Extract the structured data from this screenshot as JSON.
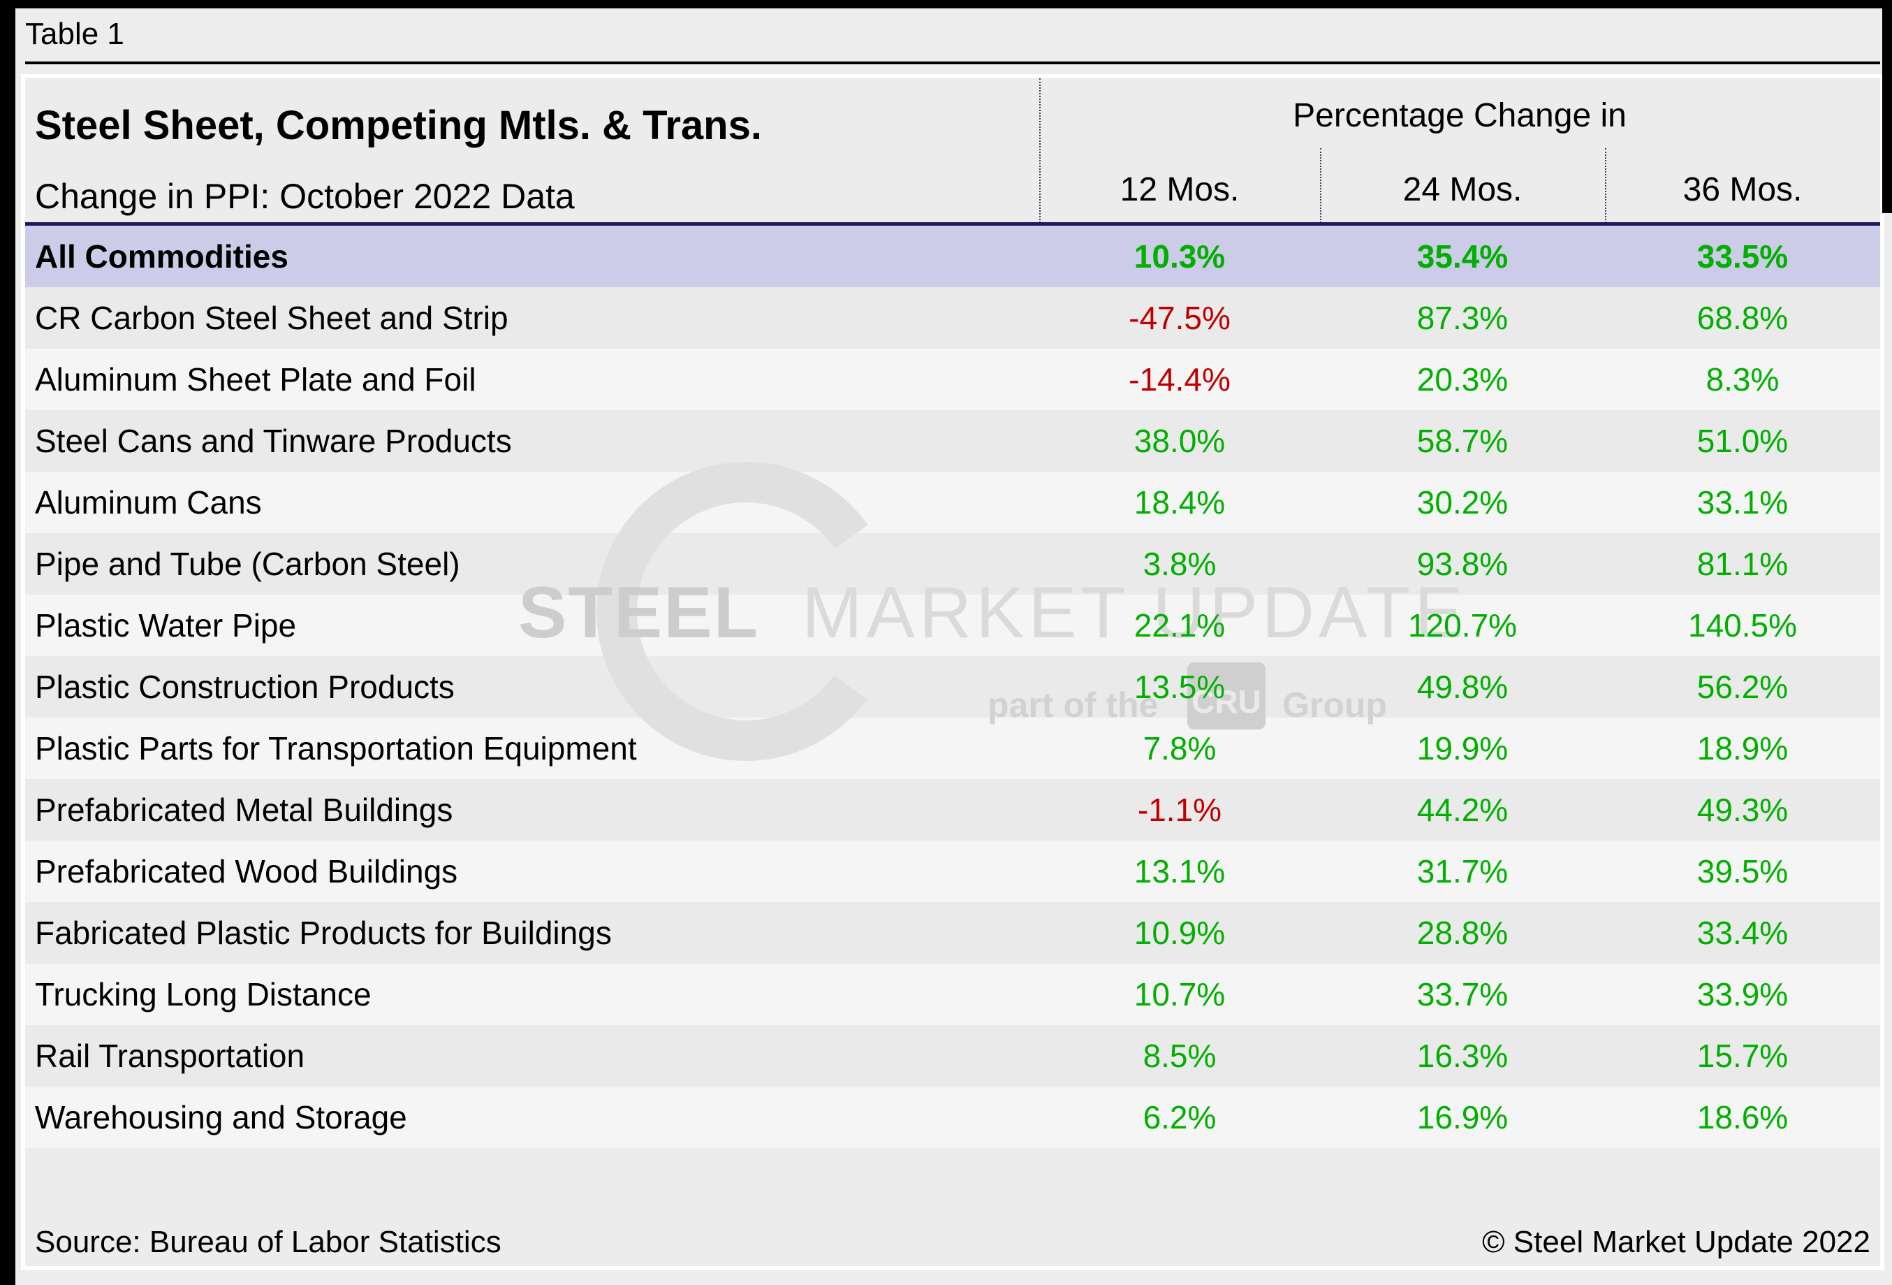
{
  "page": {
    "label": "Table 1"
  },
  "table": {
    "title": "Steel Sheet, Competing Mtls. & Trans.",
    "subtitle": "Change in PPI: October 2022 Data",
    "col_group_header": "Percentage Change in",
    "columns": [
      "12 Mos.",
      "24 Mos.",
      "36 Mos."
    ],
    "rows": [
      {
        "label": "All Commodities",
        "values": [
          "10.3%",
          "35.4%",
          "33.5%"
        ],
        "highlight": true
      },
      {
        "label": "CR Carbon Steel Sheet and Strip",
        "values": [
          "-47.5%",
          "87.3%",
          "68.8%"
        ],
        "highlight": false
      },
      {
        "label": "Aluminum Sheet Plate and Foil",
        "values": [
          "-14.4%",
          "20.3%",
          "8.3%"
        ],
        "highlight": false
      },
      {
        "label": "Steel Cans and Tinware Products",
        "values": [
          "38.0%",
          "58.7%",
          "51.0%"
        ],
        "highlight": false
      },
      {
        "label": "Aluminum Cans",
        "values": [
          "18.4%",
          "30.2%",
          "33.1%"
        ],
        "highlight": false
      },
      {
        "label": "Pipe and Tube (Carbon Steel)",
        "values": [
          "3.8%",
          "93.8%",
          "81.1%"
        ],
        "highlight": false
      },
      {
        "label": "Plastic Water Pipe",
        "values": [
          "22.1%",
          "120.7%",
          "140.5%"
        ],
        "highlight": false
      },
      {
        "label": "Plastic Construction Products",
        "values": [
          "13.5%",
          "49.8%",
          "56.2%"
        ],
        "highlight": false
      },
      {
        "label": "Plastic Parts for Transportation Equipment",
        "values": [
          "7.8%",
          "19.9%",
          "18.9%"
        ],
        "highlight": false
      },
      {
        "label": "Prefabricated Metal Buildings",
        "values": [
          "-1.1%",
          "44.2%",
          "49.3%"
        ],
        "highlight": false
      },
      {
        "label": "Prefabricated Wood Buildings",
        "values": [
          "13.1%",
          "31.7%",
          "39.5%"
        ],
        "highlight": false
      },
      {
        "label": "Fabricated Plastic Products for Buildings",
        "values": [
          "10.9%",
          "28.8%",
          "33.4%"
        ],
        "highlight": false
      },
      {
        "label": "Trucking Long Distance",
        "values": [
          "10.7%",
          "33.7%",
          "33.9%"
        ],
        "highlight": false
      },
      {
        "label": "Rail Transportation",
        "values": [
          "8.5%",
          "16.3%",
          "15.7%"
        ],
        "highlight": false
      },
      {
        "label": "Warehousing and Storage",
        "values": [
          "6.2%",
          "16.9%",
          "18.6%"
        ],
        "highlight": false
      }
    ]
  },
  "footer": {
    "source": "Source: Bureau of Labor Statistics",
    "copyright": "© Steel Market Update 2022"
  },
  "watermark": {
    "logo": "smu-circle-logo",
    "brand_bold": "STEEL",
    "brand_light": "MARKET UPDATE",
    "tagline_prefix": "part of the",
    "tagline_box": "CRU",
    "tagline_suffix": "Group"
  },
  "colors": {
    "positive": "#00AF00",
    "negative": "#C00000",
    "highlight_row": "#CCCCE9",
    "header_divider": "#1B1B5E",
    "stripe_dark": "#EAEAEA",
    "stripe_light": "#F5F5F5"
  },
  "chart_data": {
    "type": "table",
    "title": "Steel Sheet, Competing Mtls. & Trans.",
    "subtitle": "Change in PPI: October 2022 Data",
    "value_group": "Percentage Change in",
    "columns": [
      "12 Mos.",
      "24 Mos.",
      "36 Mos."
    ],
    "rows": [
      {
        "label": "All Commodities",
        "values": [
          10.3,
          35.4,
          33.5
        ]
      },
      {
        "label": "CR Carbon Steel Sheet and Strip",
        "values": [
          -47.5,
          87.3,
          68.8
        ]
      },
      {
        "label": "Aluminum Sheet Plate and Foil",
        "values": [
          -14.4,
          20.3,
          8.3
        ]
      },
      {
        "label": "Steel Cans and Tinware Products",
        "values": [
          38.0,
          58.7,
          51.0
        ]
      },
      {
        "label": "Aluminum Cans",
        "values": [
          18.4,
          30.2,
          33.1
        ]
      },
      {
        "label": "Pipe and Tube (Carbon Steel)",
        "values": [
          3.8,
          93.8,
          81.1
        ]
      },
      {
        "label": "Plastic Water Pipe",
        "values": [
          22.1,
          120.7,
          140.5
        ]
      },
      {
        "label": "Plastic Construction Products",
        "values": [
          13.5,
          49.8,
          56.2
        ]
      },
      {
        "label": "Plastic Parts for Transportation Equipment",
        "values": [
          7.8,
          19.9,
          18.9
        ]
      },
      {
        "label": "Prefabricated Metal Buildings",
        "values": [
          -1.1,
          44.2,
          49.3
        ]
      },
      {
        "label": "Prefabricated Wood Buildings",
        "values": [
          13.1,
          31.7,
          39.5
        ]
      },
      {
        "label": "Fabricated Plastic Products for Buildings",
        "values": [
          10.9,
          28.8,
          33.4
        ]
      },
      {
        "label": "Trucking Long Distance",
        "values": [
          10.7,
          33.7,
          33.9
        ]
      },
      {
        "label": "Rail Transportation",
        "values": [
          8.5,
          16.3,
          15.7
        ]
      },
      {
        "label": "Warehousing and Storage",
        "values": [
          6.2,
          16.9,
          18.6
        ]
      }
    ],
    "units": "percent",
    "source": "Bureau of Labor Statistics"
  }
}
